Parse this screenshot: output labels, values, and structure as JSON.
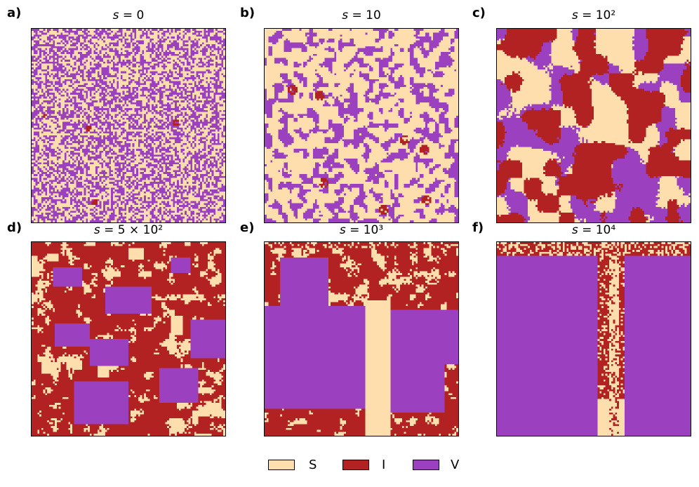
{
  "colors": {
    "S": "#FFDEAD",
    "I": "#B22222",
    "V": "#9B40BE"
  },
  "panels": [
    {
      "letter": "a)",
      "title_prefix": "s",
      "title_rest": " = 0"
    },
    {
      "letter": "b)",
      "title_prefix": "s",
      "title_rest": " = 10"
    },
    {
      "letter": "c)",
      "title_prefix": "s",
      "title_rest": " = 10²"
    },
    {
      "letter": "d)",
      "title_prefix": "s",
      "title_rest": " = 5 × 10²"
    },
    {
      "letter": "e)",
      "title_prefix": "s",
      "title_rest": " = 10³"
    },
    {
      "letter": "f)",
      "title_prefix": "s",
      "title_rest": " = 10⁴"
    }
  ],
  "legend": [
    {
      "label": "S",
      "color": "#FFDEAD"
    },
    {
      "label": "I",
      "color": "#B22222"
    },
    {
      "label": "V",
      "color": "#9B40BE"
    }
  ],
  "chart_data": {
    "type": "heatmap",
    "grid_size": 100,
    "states": [
      "S",
      "I",
      "V"
    ],
    "panels": [
      "s = 0",
      "s = 10",
      "s = 10²",
      "s = 5 × 10²",
      "s = 10³",
      "s = 10⁴"
    ]
  }
}
